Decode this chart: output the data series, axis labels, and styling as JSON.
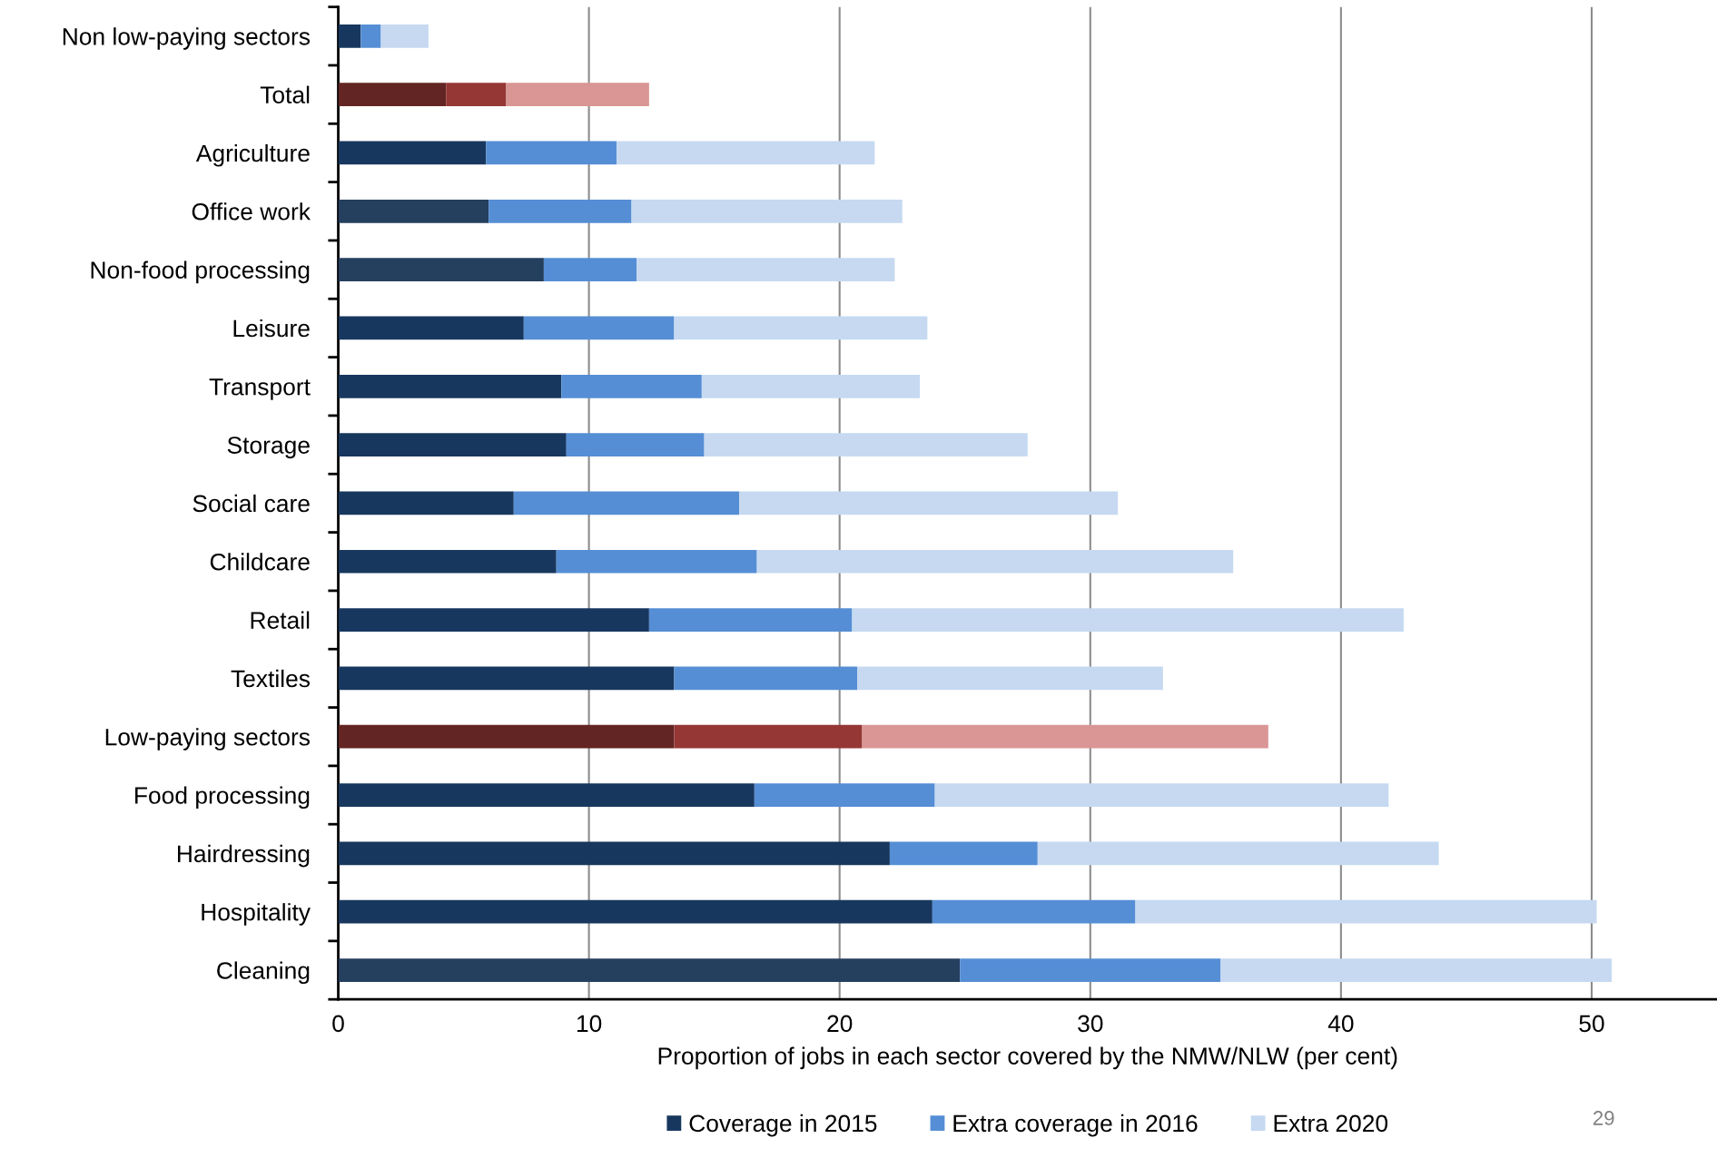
{
  "chart_data": {
    "type": "bar",
    "orientation": "horizontal",
    "stacked": true,
    "xlabel": "Proportion of jobs in each sector covered by the NMW/NLW (per cent)",
    "categories": [
      "Non low-paying sectors",
      "Total",
      "Agriculture",
      "Office work",
      "Non-food processing",
      "Leisure",
      "Transport",
      "Storage",
      "Social care",
      "Childcare",
      "Retail",
      "Textiles",
      "Low-paying sectors",
      "Food processing",
      "Hairdressing",
      "Hospitality",
      "Cleaning"
    ],
    "series": [
      {
        "name": "Coverage in 2015",
        "color": "#17375e",
        "values": [
          0.9,
          4.3,
          5.9,
          6.0,
          8.2,
          7.4,
          8.9,
          9.1,
          7.0,
          8.7,
          12.4,
          13.4,
          13.4,
          16.6,
          22.0,
          23.7,
          24.8
        ],
        "colors": [
          "#17375e",
          "#632523",
          "#17375e",
          "#253f5f",
          "#253f5f",
          "#17375e",
          "#17375e",
          "#17375e",
          "#17375e",
          "#17375e",
          "#17375e",
          "#17375e",
          "#632523",
          "#17375e",
          "#17375e",
          "#17375e",
          "#253f5f"
        ]
      },
      {
        "name": "Extra coverage in 2016",
        "color": "#558ed5",
        "values": [
          0.8,
          2.4,
          5.2,
          5.7,
          3.7,
          6.0,
          5.6,
          5.5,
          9.0,
          8.0,
          8.1,
          7.3,
          7.5,
          7.2,
          5.9,
          8.1,
          10.4
        ],
        "colors": [
          "#558ed5",
          "#953735",
          "#558ed5",
          "#558ed5",
          "#558ed5",
          "#558ed5",
          "#558ed5",
          "#558ed5",
          "#558ed5",
          "#558ed5",
          "#558ed5",
          "#558ed5",
          "#953735",
          "#558ed5",
          "#558ed5",
          "#558ed5",
          "#558ed5"
        ]
      },
      {
        "name": "Extra 2020",
        "color": "#c6d9f1",
        "values": [
          1.9,
          5.7,
          10.3,
          10.8,
          10.3,
          10.1,
          8.7,
          12.9,
          15.1,
          19.0,
          22.0,
          12.2,
          16.2,
          18.1,
          16.0,
          18.4,
          15.6
        ],
        "colors": [
          "#c6d9f1",
          "#d99694",
          "#c6d9f1",
          "#c6d9f1",
          "#c6d9f1",
          "#c6d9f1",
          "#c6d9f1",
          "#c6d9f1",
          "#c6d9f1",
          "#c6d9f1",
          "#c6d9f1",
          "#c6d9f1",
          "#d99694",
          "#c6d9f1",
          "#c6d9f1",
          "#c6d9f1",
          "#c6d9f1"
        ]
      }
    ],
    "xlim": [
      0,
      55
    ],
    "xticks": [
      0,
      10,
      20,
      30,
      40,
      50
    ],
    "grid": "x",
    "legend": "bottom",
    "annotations": [
      "29"
    ]
  }
}
